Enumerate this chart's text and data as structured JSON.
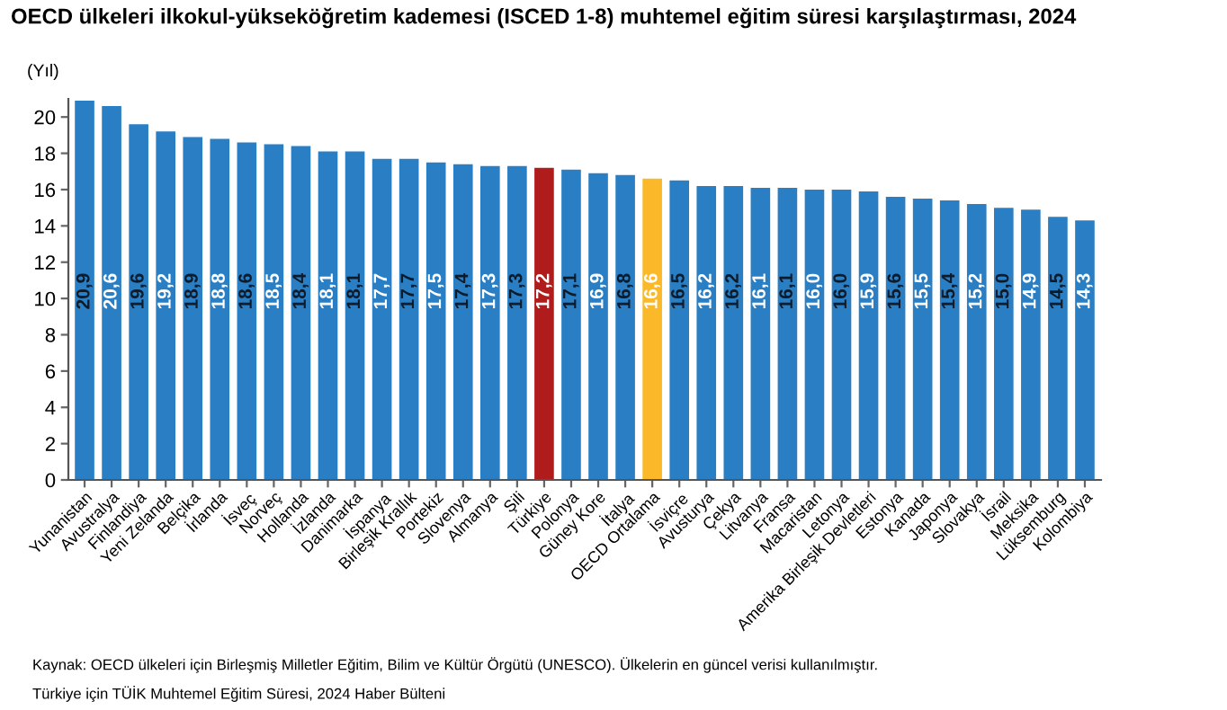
{
  "chart_data": {
    "type": "bar",
    "title": "OECD ülkeleri ilkokul-yükseköğretim kademesi (ISCED 1-8) muhtemel eğitim süresi karşılaştırması, 2024",
    "ylabel": "(Yıl)",
    "categories": [
      "Yunanistan",
      "Avustralya",
      "Finlandiya",
      "Yeni Zelanda",
      "Belçika",
      "İrlanda",
      "İsveç",
      "Norveç",
      "Hollanda",
      "İzlanda",
      "Danimarka",
      "İspanya",
      "Birleşik Krallık",
      "Portekiz",
      "Slovenya",
      "Almanya",
      "Şili",
      "Türkiye",
      "Polonya",
      "Güney Kore",
      "İtalya",
      "OECD Ortalama",
      "İsviçre",
      "Avusturya",
      "Çekya",
      "Litvanya",
      "Fransa",
      "Macaristan",
      "Letonya",
      "Amerika Birleşik Devletleri",
      "Estonya",
      "Kanada",
      "Japonya",
      "Slovakya",
      "İsrail",
      "Meksika",
      "Lüksemburg",
      "Kolombiya"
    ],
    "values": [
      20.9,
      20.6,
      19.6,
      19.2,
      18.9,
      18.8,
      18.6,
      18.5,
      18.4,
      18.1,
      18.1,
      17.7,
      17.7,
      17.5,
      17.4,
      17.3,
      17.3,
      17.2,
      17.1,
      16.9,
      16.8,
      16.6,
      16.5,
      16.2,
      16.2,
      16.1,
      16.1,
      16.0,
      16.0,
      15.9,
      15.6,
      15.5,
      15.4,
      15.2,
      15.0,
      14.9,
      14.5,
      14.3
    ],
    "value_labels": [
      "20,9",
      "20,6",
      "19,6",
      "19,2",
      "18,9",
      "18,8",
      "18,6",
      "18,5",
      "18,4",
      "18,1",
      "18,1",
      "17,7",
      "17,7",
      "17,5",
      "17,4",
      "17,3",
      "17,3",
      "17,2",
      "17,1",
      "16,9",
      "16,8",
      "16,6",
      "16,5",
      "16,2",
      "16,2",
      "16,1",
      "16,1",
      "16,0",
      "16,0",
      "15,9",
      "15,6",
      "15,5",
      "15,4",
      "15,2",
      "15,0",
      "14,9",
      "14,5",
      "14,3"
    ],
    "colors": [
      "#2a7fc4",
      "#2a7fc4",
      "#2a7fc4",
      "#2a7fc4",
      "#2a7fc4",
      "#2a7fc4",
      "#2a7fc4",
      "#2a7fc4",
      "#2a7fc4",
      "#2a7fc4",
      "#2a7fc4",
      "#2a7fc4",
      "#2a7fc4",
      "#2a7fc4",
      "#2a7fc4",
      "#2a7fc4",
      "#2a7fc4",
      "#b01c1c",
      "#2a7fc4",
      "#2a7fc4",
      "#2a7fc4",
      "#fbb92a",
      "#2a7fc4",
      "#2a7fc4",
      "#2a7fc4",
      "#2a7fc4",
      "#2a7fc4",
      "#2a7fc4",
      "#2a7fc4",
      "#2a7fc4",
      "#2a7fc4",
      "#2a7fc4",
      "#2a7fc4",
      "#2a7fc4",
      "#2a7fc4",
      "#2a7fc4",
      "#2a7fc4",
      "#2a7fc4"
    ],
    "ylim": [
      0,
      21
    ],
    "yticks": [
      0,
      2,
      4,
      6,
      8,
      10,
      12,
      14,
      16,
      18,
      20
    ],
    "grid": false,
    "legend": false,
    "annotations": [
      "Kaynak: OECD ülkeleri için Birleşmiş Milletler Eğitim, Bilim ve Kültür Örgütü (UNESCO). Ülkelerin en güncel verisi kullanılmıştır.",
      "Türkiye için TÜİK Muhtemel Eğitim Süresi, 2024 Haber Bülteni"
    ]
  }
}
